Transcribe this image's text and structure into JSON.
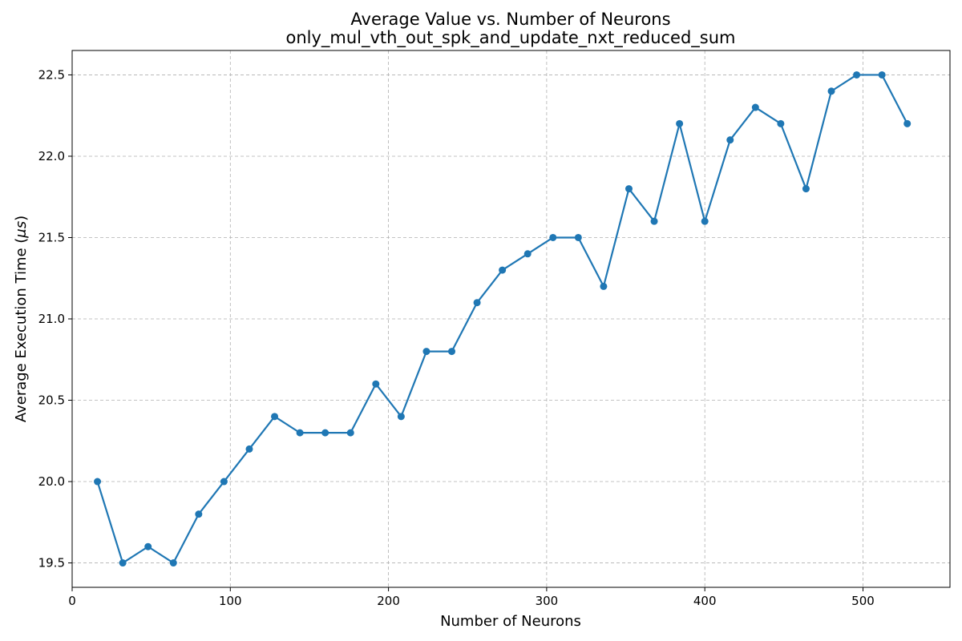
{
  "chart_data": {
    "type": "line",
    "title": "Average Value vs. Number of Neurons",
    "subtitle": "only_mul_vth_out_spk_and_update_nxt_reduced_sum",
    "xlabel": "Number of Neurons",
    "ylabel_prefix": "Average Execution Time (",
    "ylabel_unit": "μs",
    "ylabel_suffix": ")",
    "xlim": [
      0,
      555
    ],
    "ylim": [
      19.35,
      22.65
    ],
    "x_ticks": [
      0,
      100,
      200,
      300,
      400,
      500
    ],
    "y_ticks": [
      19.5,
      20.0,
      20.5,
      21.0,
      21.5,
      22.0,
      22.5
    ],
    "x_tick_labels": [
      "0",
      "100",
      "200",
      "300",
      "400",
      "500"
    ],
    "y_tick_labels": [
      "19.5",
      "20.0",
      "20.5",
      "21.0",
      "21.5",
      "22.0",
      "22.5"
    ],
    "grid": true,
    "color": "#1f77b4",
    "series": [
      {
        "x": [
          16,
          32,
          48,
          64,
          80,
          96,
          112,
          128,
          144,
          160,
          176,
          192,
          208,
          224,
          240,
          256,
          272,
          288,
          304,
          320,
          336,
          352,
          368,
          384,
          400,
          416,
          432,
          448,
          464,
          480,
          496,
          512,
          528
        ],
        "y": [
          20.0,
          19.5,
          19.6,
          19.5,
          19.8,
          20.0,
          20.2,
          20.4,
          20.3,
          20.3,
          20.3,
          20.6,
          20.4,
          20.8,
          20.8,
          21.1,
          21.3,
          21.4,
          21.5,
          21.5,
          21.2,
          21.8,
          21.6,
          22.2,
          21.6,
          22.1,
          22.3,
          22.2,
          21.8,
          22.4,
          22.5,
          22.5,
          22.2
        ]
      }
    ]
  }
}
